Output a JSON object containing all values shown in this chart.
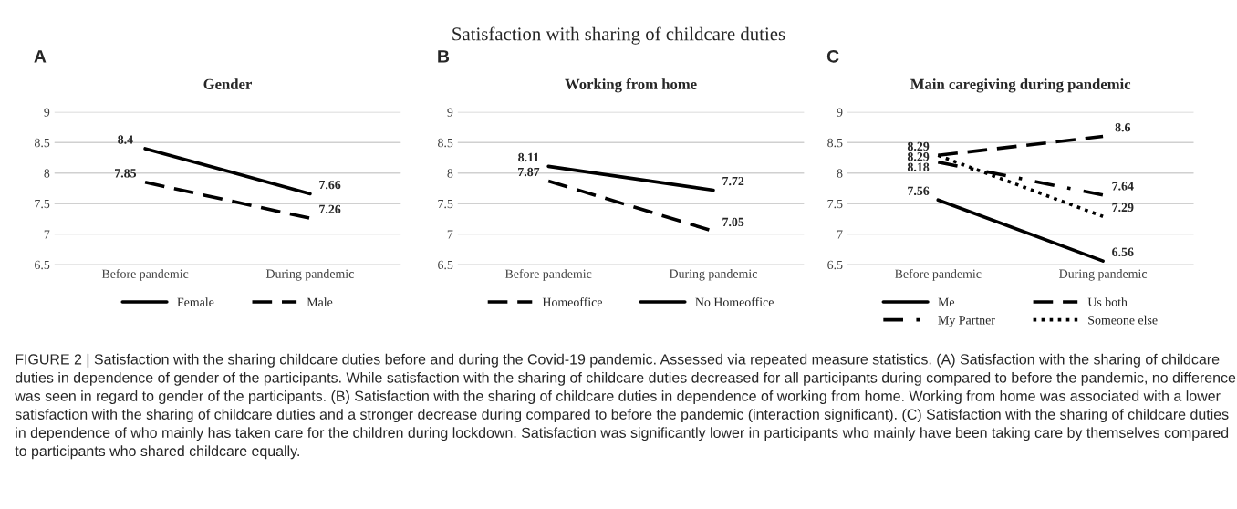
{
  "chart_data": [
    {
      "type": "line",
      "title": "Gender",
      "categories": [
        "Before pandemic",
        "During pandemic"
      ],
      "ylim": [
        6.5,
        9
      ],
      "yticks": [
        6.5,
        7,
        7.5,
        8,
        8.5,
        9
      ],
      "grid": "y",
      "legend": "bottom",
      "data_labels": true,
      "marker": "none",
      "annotations": [
        "A",
        "Satisfaction with sharing of childcare duties",
        "FIGURE 2 | Satisfaction with the sharing childcare duties before and during the Covid-19 pandemic. Assessed via repeated measure statistics. (A) Satisfaction with the sharing of childcare duties in dependence of gender of the participants. While satisfaction with the sharing of childcare duties decreased for all participants during compared to before the pandemic, no difference was seen in regard to gender of the participants. (B) Satisfaction with the sharing of childcare duties in dependence of working from home. Working from home was associated with a lower satisfaction with the sharing of childcare duties and a stronger decrease during compared to before the pandemic (interaction significant). (C) Satisfaction with the sharing of childcare duties in dependence of who mainly has taken care for the children during lockdown. Satisfaction was significantly lower in participants who mainly have been taking care by themselves compared to participants who shared childcare equally."
      ],
      "series": [
        {
          "name": "Female",
          "color": "#000000",
          "line_style": "solid",
          "values": [
            8.4,
            7.66
          ]
        },
        {
          "name": "Male",
          "color": "#000000",
          "line_style": "dashed",
          "values": [
            7.85,
            7.26
          ]
        }
      ]
    },
    {
      "type": "line",
      "title": "Working from home",
      "categories": [
        "Before pandemic",
        "During pandemic"
      ],
      "ylim": [
        6.5,
        9
      ],
      "yticks": [
        6.5,
        7,
        7.5,
        8,
        8.5,
        9
      ],
      "grid": "y",
      "legend": "bottom",
      "data_labels": true,
      "marker": "none",
      "annotations": [
        "B"
      ],
      "series": [
        {
          "name": "Homeoffice",
          "color": "#000000",
          "line_style": "dashed",
          "values": [
            7.87,
            7.05
          ]
        },
        {
          "name": "No Homeoffice",
          "color": "#000000",
          "line_style": "solid",
          "values": [
            8.11,
            7.72
          ]
        }
      ]
    },
    {
      "type": "line",
      "title": "Main caregiving during pandemic",
      "categories": [
        "Before pandemic",
        "During pandemic"
      ],
      "ylim": [
        6.5,
        9
      ],
      "yticks": [
        6.5,
        7,
        7.5,
        8,
        8.5,
        9
      ],
      "grid": "y",
      "legend": "bottom",
      "data_labels": true,
      "marker": "none",
      "annotations": [
        "C"
      ],
      "series": [
        {
          "name": "Me",
          "color": "#000000",
          "line_style": "solid",
          "values": [
            7.56,
            6.56
          ]
        },
        {
          "name": "My Partner",
          "color": "#000000",
          "line_style": "dashdot",
          "values": [
            8.18,
            7.64
          ]
        },
        {
          "name": "Us both",
          "color": "#000000",
          "line_style": "dashed",
          "values": [
            8.29,
            8.6
          ]
        },
        {
          "name": "Someone else",
          "color": "#000000",
          "line_style": "dotted",
          "values": [
            8.29,
            7.29
          ]
        }
      ]
    }
  ]
}
